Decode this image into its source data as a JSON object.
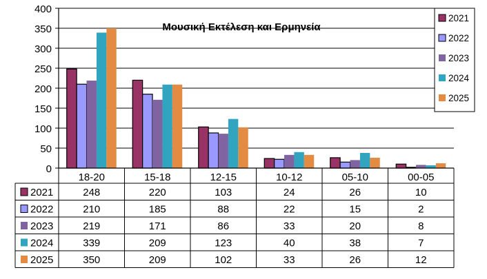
{
  "chart_data": {
    "type": "bar",
    "title": "Μουσική  Εκτέλεση και Ερμηνεία",
    "categories": [
      "18-20",
      "15-18",
      "12-15",
      "10-12",
      "05-10",
      "00-05"
    ],
    "ylim": [
      0,
      400
    ],
    "yticks": [
      0,
      50,
      100,
      150,
      200,
      250,
      300,
      350,
      400
    ],
    "grid": true,
    "legend": "top-right",
    "data_table": true,
    "series": [
      {
        "name": "2021",
        "color": "#993366",
        "values": [
          248,
          220,
          103,
          24,
          26,
          10
        ],
        "labels": [
          "248",
          "220",
          "103",
          "24",
          "26",
          "10"
        ]
      },
      {
        "name": "2022",
        "color": "#9999ff",
        "values": [
          210,
          185,
          88,
          22,
          15,
          2
        ],
        "labels": [
          "210",
          "185",
          "88",
          "22",
          "15",
          "2"
        ]
      },
      {
        "name": "2023",
        "color": "#8064a2",
        "values": [
          219,
          171,
          86,
          33,
          20,
          8
        ],
        "labels": [
          "219",
          "171",
          "86",
          "33",
          "20",
          "8"
        ]
      },
      {
        "name": "2024",
        "color": "#31a4c0",
        "values": [
          339,
          209,
          123,
          40,
          38,
          7
        ],
        "labels": [
          "339",
          "209",
          "123",
          "40",
          "38",
          "7"
        ]
      },
      {
        "name": "2025",
        "color": "#e38b42",
        "values": [
          350,
          209,
          102,
          33,
          26,
          12
        ],
        "labels": [
          "350",
          "209",
          "102",
          "33",
          "26",
          "12"
        ]
      }
    ]
  }
}
